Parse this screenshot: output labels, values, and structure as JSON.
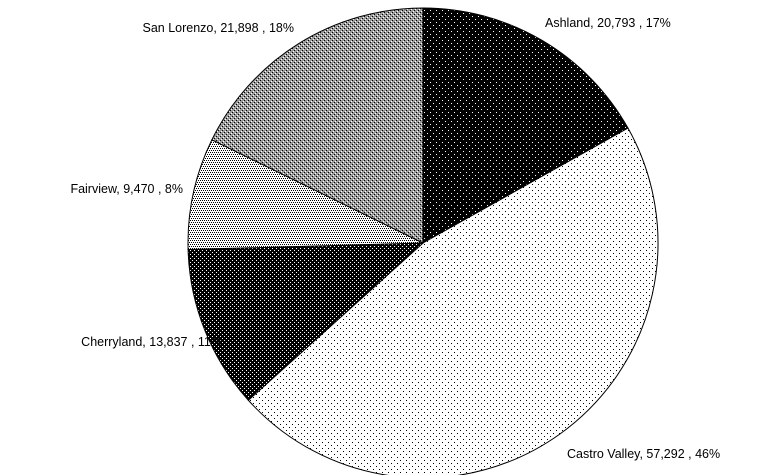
{
  "chart_data": {
    "type": "pie",
    "slices": [
      {
        "label": "Ashland",
        "value": 20793,
        "value_text": "20,793",
        "percent_text": "17%",
        "pattern": "dots-dark"
      },
      {
        "label": "Castro Valley",
        "value": 57292,
        "value_text": "57,292",
        "percent_text": "46%",
        "pattern": "dots-light"
      },
      {
        "label": "Cherryland",
        "value": 13837,
        "value_text": "13,837",
        "percent_text": "11%",
        "pattern": "checker-dark"
      },
      {
        "label": "Fairview",
        "value": 9470,
        "value_text": "9,470",
        "percent_text": "8%",
        "pattern": "checker-light"
      },
      {
        "label": "San Lorenzo",
        "value": 21898,
        "value_text": "21,898",
        "percent_text": "18%",
        "pattern": "crosshatch-gray"
      }
    ],
    "start": "12 o'clock",
    "direction": "clockwise",
    "legend": "none",
    "data_labels": "outside"
  }
}
